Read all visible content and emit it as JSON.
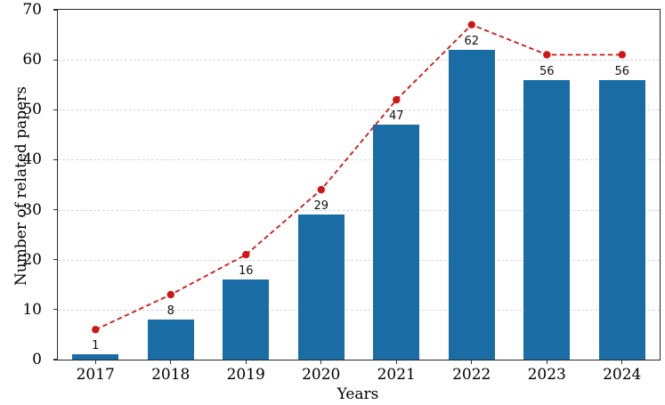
{
  "chart_data": {
    "type": "bar",
    "title": "",
    "xlabel": "Years",
    "ylabel": "Number of related papers",
    "categories": [
      "2017",
      "2018",
      "2019",
      "2020",
      "2021",
      "2022",
      "2023",
      "2024"
    ],
    "series": [
      {
        "name": "related-papers-bars",
        "type": "bar",
        "values": [
          1,
          8,
          16,
          29,
          47,
          62,
          56,
          56
        ],
        "bar_labels": [
          "1",
          "8",
          "16",
          "29",
          "47",
          "62",
          "56",
          "56"
        ],
        "color": "#1a6da4"
      },
      {
        "name": "trend-line-markers",
        "type": "line",
        "values": [
          6,
          13,
          21,
          34,
          52,
          67,
          61,
          61
        ],
        "color": "#d11616",
        "linestyle": "dashed",
        "marker": "circle"
      }
    ],
    "ylim": [
      0,
      70
    ],
    "yticks": [
      0,
      10,
      20,
      30,
      40,
      50,
      60,
      70
    ],
    "grid": {
      "axis": "y",
      "style": "dashed",
      "color": "#d8d8d8"
    },
    "legend": "none",
    "spine_color": "#262626",
    "tick_color": "#333333",
    "text_color": "#000000"
  }
}
